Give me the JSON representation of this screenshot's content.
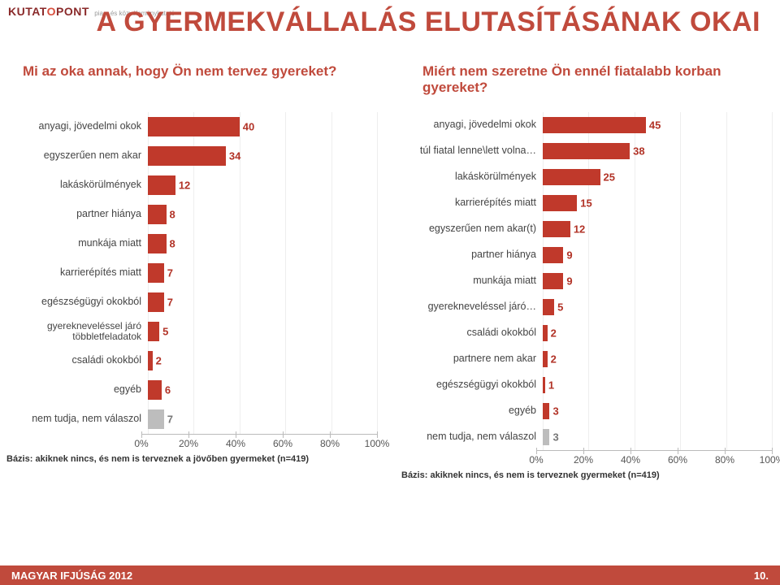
{
  "logo": {
    "text_a": "KUTAT",
    "text_b": "PONT",
    "tag": "piac- és közvéleménykutató"
  },
  "title": "A GYERMEKVÁLLALÁS ELUTASÍTÁSÁNAK OKAI",
  "title_color": "#c04a3c",
  "left": {
    "question": "Mi az oka annak, hogy Ön nem tervez gyereket?",
    "type": "bar",
    "orientation": "horizontal",
    "bar_color": "#c0392b",
    "grey_color": "#bdbdbd",
    "text_color": "#444",
    "xlim": [
      0,
      100
    ],
    "xtick_step": 20,
    "categories": [
      {
        "label": "anyagi, jövedelmi okok",
        "value": 40,
        "v": "40",
        "color": "red"
      },
      {
        "label": "egyszerűen nem akar",
        "value": 34,
        "v": "34",
        "color": "red"
      },
      {
        "label": "lakáskörülmények",
        "value": 12,
        "v": "12",
        "color": "red"
      },
      {
        "label": "partner hiánya",
        "value": 8,
        "v": "8",
        "color": "red"
      },
      {
        "label": "munkája miatt",
        "value": 8,
        "v": "8",
        "color": "red"
      },
      {
        "label": "karrierépítés miatt",
        "value": 7,
        "v": "7",
        "color": "red"
      },
      {
        "label": "egészségügyi okokból",
        "value": 7,
        "v": "7",
        "color": "red"
      },
      {
        "label": "gyerekneveléssel járó többletfeladatok",
        "value": 5,
        "v": "5",
        "color": "red"
      },
      {
        "label": "családi okokból",
        "value": 2,
        "v": "2",
        "color": "red"
      },
      {
        "label": "egyéb",
        "value": 6,
        "v": "6",
        "color": "red"
      },
      {
        "label": "nem tudja, nem válaszol",
        "value": 7,
        "v": "7",
        "color": "grey"
      }
    ],
    "basis": "Bázis: akiknek nincs, és nem is terveznek a jövőben gyermeket (n=419)"
  },
  "right": {
    "question": "Miért nem szeretne Ön ennél fiatalabb korban gyereket?",
    "type": "bar",
    "orientation": "horizontal",
    "bar_color": "#c0392b",
    "grey_color": "#bdbdbd",
    "text_color": "#444",
    "xlim": [
      0,
      100
    ],
    "xtick_step": 20,
    "categories": [
      {
        "label": "anyagi, jövedelmi okok",
        "value": 45,
        "v": "45",
        "color": "red"
      },
      {
        "label": "túl fiatal lenne\\lett volna…",
        "value": 38,
        "v": "38",
        "color": "red"
      },
      {
        "label": "lakáskörülmények",
        "value": 25,
        "v": "25",
        "color": "red"
      },
      {
        "label": "karrierépítés miatt",
        "value": 15,
        "v": "15",
        "color": "red"
      },
      {
        "label": "egyszerűen nem akar(t)",
        "value": 12,
        "v": "12",
        "color": "red"
      },
      {
        "label": "partner hiánya",
        "value": 9,
        "v": "9",
        "color": "red"
      },
      {
        "label": "munkája miatt",
        "value": 9,
        "v": "9",
        "color": "red"
      },
      {
        "label": "gyerekneveléssel járó…",
        "value": 5,
        "v": "5",
        "color": "red"
      },
      {
        "label": "családi okokból",
        "value": 2,
        "v": "2",
        "color": "red"
      },
      {
        "label": "partnere nem akar",
        "value": 2,
        "v": "2",
        "color": "red"
      },
      {
        "label": "egészségügyi okokból",
        "value": 1,
        "v": "1",
        "color": "red"
      },
      {
        "label": "egyéb",
        "value": 3,
        "v": "3",
        "color": "red"
      },
      {
        "label": "nem tudja, nem válaszol",
        "value": 3,
        "v": "3",
        "color": "grey"
      }
    ],
    "basis": "Bázis: akiknek nincs, és nem is terveznek gyermeket (n=419)"
  },
  "axis_labels": [
    "0%",
    "20%",
    "40%",
    "60%",
    "80%",
    "100%"
  ],
  "footer": {
    "left": "MAGYAR IFJÚSÁG 2012",
    "right": "10.",
    "bg": "#c04a3c"
  }
}
